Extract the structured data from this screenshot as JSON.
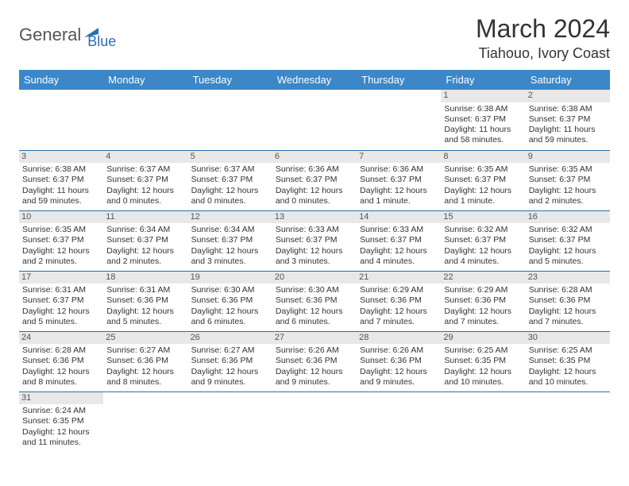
{
  "logo": {
    "part1": "General",
    "part2": "Blue"
  },
  "title": "March 2024",
  "location": "Tiahouo, Ivory Coast",
  "colors": {
    "header_bg": "#3b87c8",
    "header_fg": "#ffffff",
    "daynum_bg": "#e8e8e8",
    "row_border": "#2a6db0",
    "logo_blue": "#2a6db0"
  },
  "weekdays": [
    "Sunday",
    "Monday",
    "Tuesday",
    "Wednesday",
    "Thursday",
    "Friday",
    "Saturday"
  ],
  "weeks": [
    [
      null,
      null,
      null,
      null,
      null,
      {
        "d": "1",
        "l1": "Sunrise: 6:38 AM",
        "l2": "Sunset: 6:37 PM",
        "l3": "Daylight: 11 hours",
        "l4": "and 58 minutes."
      },
      {
        "d": "2",
        "l1": "Sunrise: 6:38 AM",
        "l2": "Sunset: 6:37 PM",
        "l3": "Daylight: 11 hours",
        "l4": "and 59 minutes."
      }
    ],
    [
      {
        "d": "3",
        "l1": "Sunrise: 6:38 AM",
        "l2": "Sunset: 6:37 PM",
        "l3": "Daylight: 11 hours",
        "l4": "and 59 minutes."
      },
      {
        "d": "4",
        "l1": "Sunrise: 6:37 AM",
        "l2": "Sunset: 6:37 PM",
        "l3": "Daylight: 12 hours",
        "l4": "and 0 minutes."
      },
      {
        "d": "5",
        "l1": "Sunrise: 6:37 AM",
        "l2": "Sunset: 6:37 PM",
        "l3": "Daylight: 12 hours",
        "l4": "and 0 minutes."
      },
      {
        "d": "6",
        "l1": "Sunrise: 6:36 AM",
        "l2": "Sunset: 6:37 PM",
        "l3": "Daylight: 12 hours",
        "l4": "and 0 minutes."
      },
      {
        "d": "7",
        "l1": "Sunrise: 6:36 AM",
        "l2": "Sunset: 6:37 PM",
        "l3": "Daylight: 12 hours",
        "l4": "and 1 minute."
      },
      {
        "d": "8",
        "l1": "Sunrise: 6:35 AM",
        "l2": "Sunset: 6:37 PM",
        "l3": "Daylight: 12 hours",
        "l4": "and 1 minute."
      },
      {
        "d": "9",
        "l1": "Sunrise: 6:35 AM",
        "l2": "Sunset: 6:37 PM",
        "l3": "Daylight: 12 hours",
        "l4": "and 2 minutes."
      }
    ],
    [
      {
        "d": "10",
        "l1": "Sunrise: 6:35 AM",
        "l2": "Sunset: 6:37 PM",
        "l3": "Daylight: 12 hours",
        "l4": "and 2 minutes."
      },
      {
        "d": "11",
        "l1": "Sunrise: 6:34 AM",
        "l2": "Sunset: 6:37 PM",
        "l3": "Daylight: 12 hours",
        "l4": "and 2 minutes."
      },
      {
        "d": "12",
        "l1": "Sunrise: 6:34 AM",
        "l2": "Sunset: 6:37 PM",
        "l3": "Daylight: 12 hours",
        "l4": "and 3 minutes."
      },
      {
        "d": "13",
        "l1": "Sunrise: 6:33 AM",
        "l2": "Sunset: 6:37 PM",
        "l3": "Daylight: 12 hours",
        "l4": "and 3 minutes."
      },
      {
        "d": "14",
        "l1": "Sunrise: 6:33 AM",
        "l2": "Sunset: 6:37 PM",
        "l3": "Daylight: 12 hours",
        "l4": "and 4 minutes."
      },
      {
        "d": "15",
        "l1": "Sunrise: 6:32 AM",
        "l2": "Sunset: 6:37 PM",
        "l3": "Daylight: 12 hours",
        "l4": "and 4 minutes."
      },
      {
        "d": "16",
        "l1": "Sunrise: 6:32 AM",
        "l2": "Sunset: 6:37 PM",
        "l3": "Daylight: 12 hours",
        "l4": "and 5 minutes."
      }
    ],
    [
      {
        "d": "17",
        "l1": "Sunrise: 6:31 AM",
        "l2": "Sunset: 6:37 PM",
        "l3": "Daylight: 12 hours",
        "l4": "and 5 minutes."
      },
      {
        "d": "18",
        "l1": "Sunrise: 6:31 AM",
        "l2": "Sunset: 6:36 PM",
        "l3": "Daylight: 12 hours",
        "l4": "and 5 minutes."
      },
      {
        "d": "19",
        "l1": "Sunrise: 6:30 AM",
        "l2": "Sunset: 6:36 PM",
        "l3": "Daylight: 12 hours",
        "l4": "and 6 minutes."
      },
      {
        "d": "20",
        "l1": "Sunrise: 6:30 AM",
        "l2": "Sunset: 6:36 PM",
        "l3": "Daylight: 12 hours",
        "l4": "and 6 minutes."
      },
      {
        "d": "21",
        "l1": "Sunrise: 6:29 AM",
        "l2": "Sunset: 6:36 PM",
        "l3": "Daylight: 12 hours",
        "l4": "and 7 minutes."
      },
      {
        "d": "22",
        "l1": "Sunrise: 6:29 AM",
        "l2": "Sunset: 6:36 PM",
        "l3": "Daylight: 12 hours",
        "l4": "and 7 minutes."
      },
      {
        "d": "23",
        "l1": "Sunrise: 6:28 AM",
        "l2": "Sunset: 6:36 PM",
        "l3": "Daylight: 12 hours",
        "l4": "and 7 minutes."
      }
    ],
    [
      {
        "d": "24",
        "l1": "Sunrise: 6:28 AM",
        "l2": "Sunset: 6:36 PM",
        "l3": "Daylight: 12 hours",
        "l4": "and 8 minutes."
      },
      {
        "d": "25",
        "l1": "Sunrise: 6:27 AM",
        "l2": "Sunset: 6:36 PM",
        "l3": "Daylight: 12 hours",
        "l4": "and 8 minutes."
      },
      {
        "d": "26",
        "l1": "Sunrise: 6:27 AM",
        "l2": "Sunset: 6:36 PM",
        "l3": "Daylight: 12 hours",
        "l4": "and 9 minutes."
      },
      {
        "d": "27",
        "l1": "Sunrise: 6:26 AM",
        "l2": "Sunset: 6:36 PM",
        "l3": "Daylight: 12 hours",
        "l4": "and 9 minutes."
      },
      {
        "d": "28",
        "l1": "Sunrise: 6:26 AM",
        "l2": "Sunset: 6:36 PM",
        "l3": "Daylight: 12 hours",
        "l4": "and 9 minutes."
      },
      {
        "d": "29",
        "l1": "Sunrise: 6:25 AM",
        "l2": "Sunset: 6:35 PM",
        "l3": "Daylight: 12 hours",
        "l4": "and 10 minutes."
      },
      {
        "d": "30",
        "l1": "Sunrise: 6:25 AM",
        "l2": "Sunset: 6:35 PM",
        "l3": "Daylight: 12 hours",
        "l4": "and 10 minutes."
      }
    ],
    [
      {
        "d": "31",
        "l1": "Sunrise: 6:24 AM",
        "l2": "Sunset: 6:35 PM",
        "l3": "Daylight: 12 hours",
        "l4": "and 11 minutes."
      },
      null,
      null,
      null,
      null,
      null,
      null
    ]
  ]
}
